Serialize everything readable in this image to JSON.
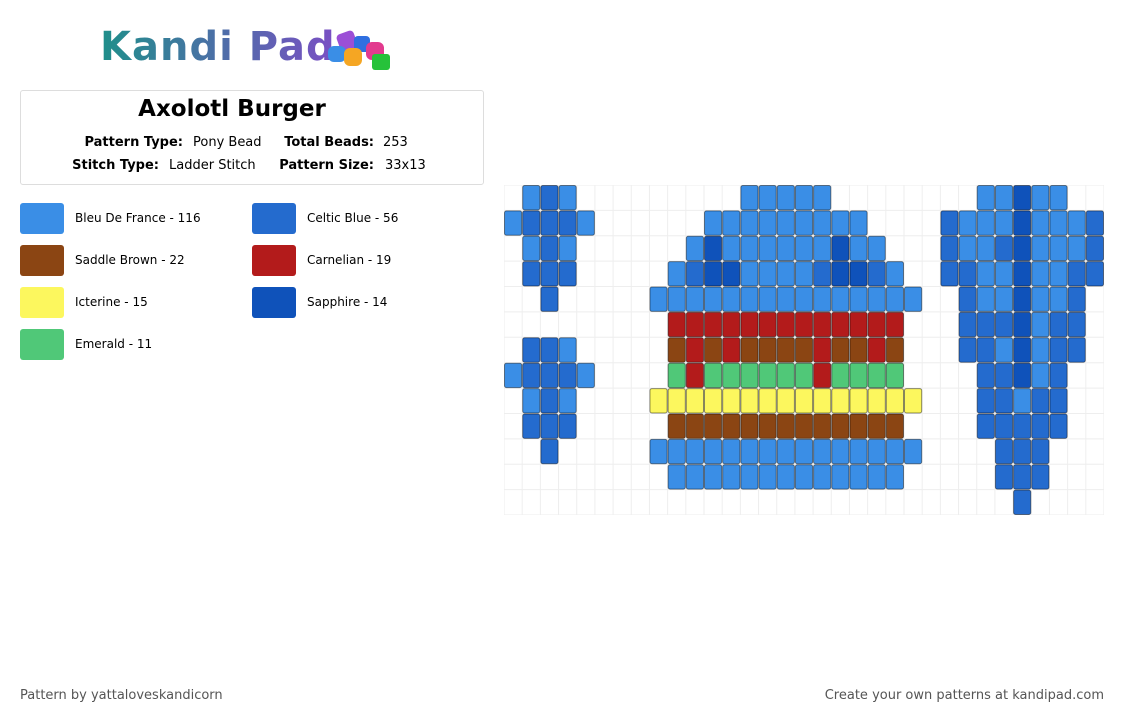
{
  "logo": "Kandi Pad",
  "pattern": {
    "title": "Axolotl Burger",
    "fields": [
      {
        "label": "Pattern Type:",
        "value": "Pony Bead"
      },
      {
        "label": "Total Beads:",
        "value": "253"
      },
      {
        "label": "Stitch Type:",
        "value": "Ladder Stitch"
      },
      {
        "label": "Pattern Size:",
        "value": "33x13"
      }
    ]
  },
  "legend": [
    {
      "label": "Bleu De France - 116",
      "color": "#3a8ee6"
    },
    {
      "label": "Celtic Blue - 56",
      "color": "#246bce"
    },
    {
      "label": "Saddle Brown - 22",
      "color": "#8b4513"
    },
    {
      "label": "Carnelian - 19",
      "color": "#b31b1b"
    },
    {
      "label": "Icterine - 15",
      "color": "#fcf75e"
    },
    {
      "label": "Sapphire - 14",
      "color": "#0f52ba"
    },
    {
      "label": "Emerald - 11",
      "color": "#50c878"
    }
  ],
  "footer": {
    "left": "Pattern by yattaloveskandicorn",
    "right": "Create your own patterns at kandipad.com"
  }
}
